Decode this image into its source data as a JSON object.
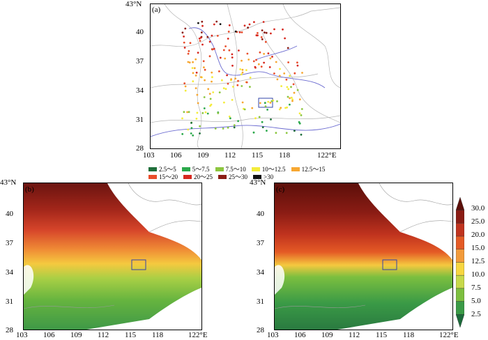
{
  "panel_a": {
    "label": "(a)",
    "y_top_label": "43°N",
    "y_ticks": [
      "40",
      "37",
      "34",
      "31",
      "28"
    ],
    "x_ticks": [
      "103",
      "106",
      "109",
      "112",
      "115",
      "118"
    ],
    "x_end_label": "122°E"
  },
  "panel_b": {
    "label": "(b)",
    "y_top_label": "43°N",
    "y_ticks": [
      "40",
      "37",
      "34",
      "31",
      "28"
    ],
    "x_ticks": [
      "103",
      "106",
      "109",
      "112",
      "115",
      "118"
    ],
    "x_end_label": "122°E"
  },
  "panel_c": {
    "label": "(c)",
    "y_top_label": "43°N",
    "y_ticks": [
      "40",
      "37",
      "34",
      "31",
      "28"
    ],
    "x_ticks": [
      "103",
      "106",
      "109",
      "112",
      "115",
      "118"
    ],
    "x_end_label": "122°E"
  },
  "station_legend": [
    {
      "label": "2.5～5",
      "color": "#1e6e3a"
    },
    {
      "label": "5～7.5",
      "color": "#2aa84a"
    },
    {
      "label": "7.5～10",
      "color": "#8cc63f"
    },
    {
      "label": "10～12.5",
      "color": "#f4ec3a"
    },
    {
      "label": "12.5～15",
      "color": "#f7a731"
    },
    {
      "label": "15～20",
      "color": "#e94d2b"
    },
    {
      "label": "20～25",
      "color": "#d6281f"
    },
    {
      "label": "25～30",
      "color": "#8a1c14"
    },
    {
      "label": ">30",
      "color": "#111111"
    }
  ],
  "colorbar": {
    "labels": [
      "30.0",
      "25.0",
      "20.0",
      "15.0",
      "12.5",
      "10.0",
      "7.5",
      "5.0",
      "2.5"
    ],
    "colors": [
      "#5c0f0a",
      "#8a1c14",
      "#c0331e",
      "#e45a25",
      "#f29a3a",
      "#f7d640",
      "#c7d94a",
      "#7cbf3f",
      "#3a9a46",
      "#1c6a3a"
    ]
  }
}
